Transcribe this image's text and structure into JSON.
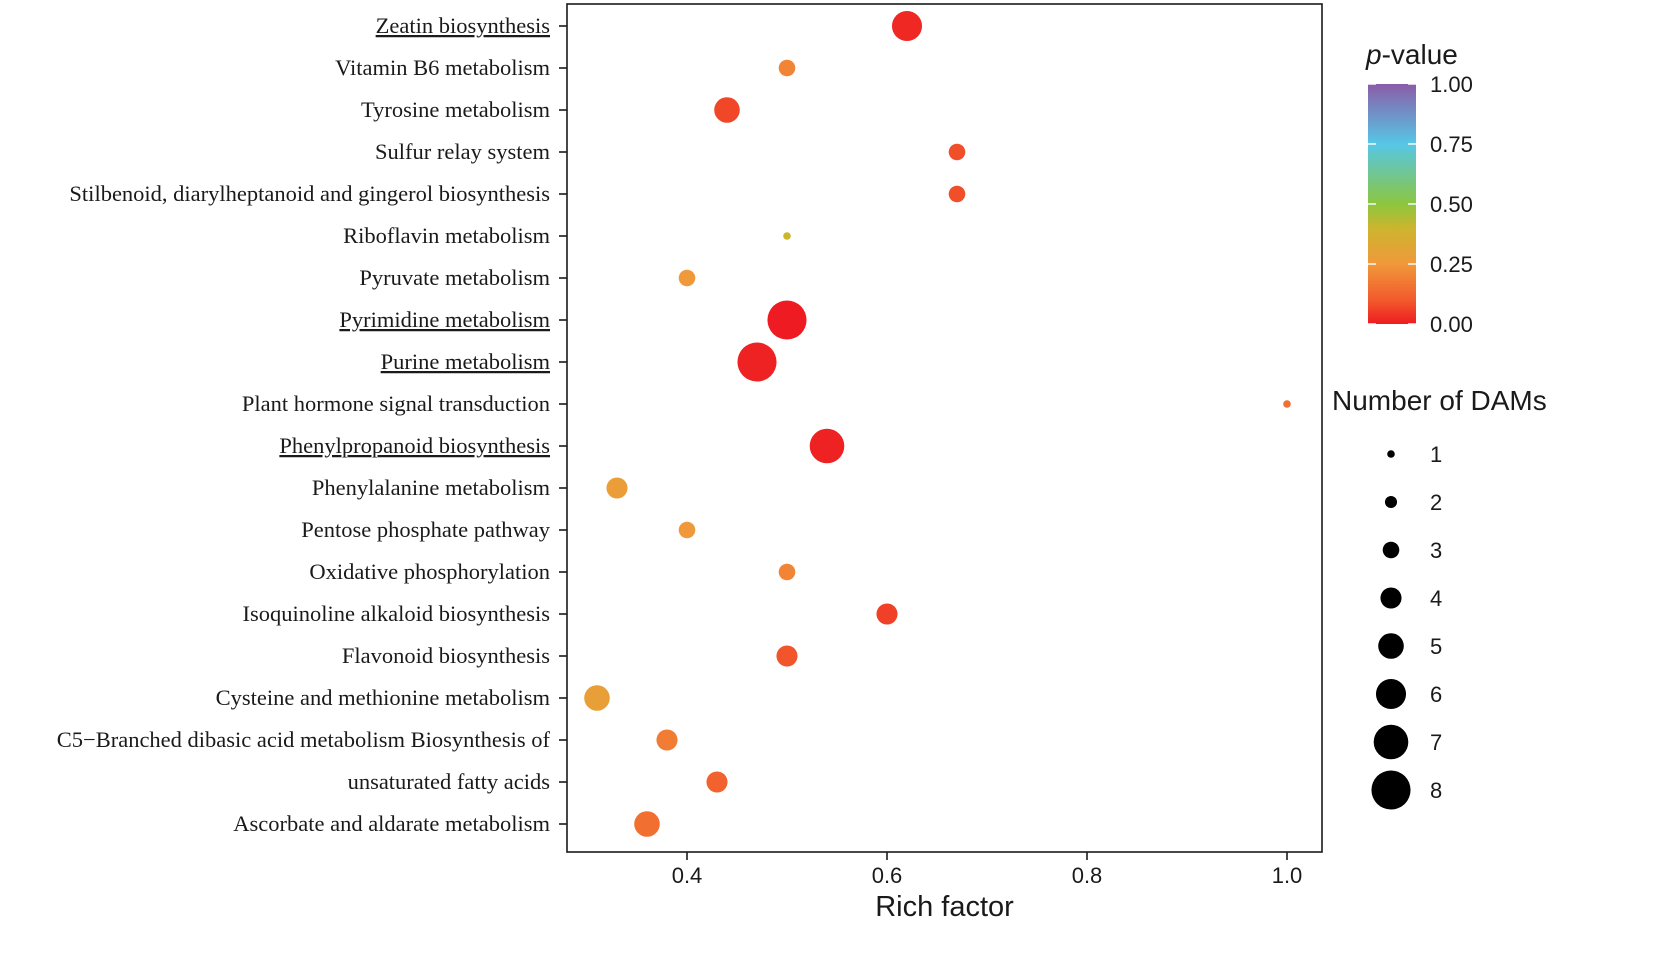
{
  "chart_data": {
    "type": "scatter",
    "title": "",
    "xlabel": "Rich factor",
    "ylabel": "",
    "xlim": [
      0.28,
      1.035
    ],
    "x_ticks": [
      0.4,
      0.6,
      0.8,
      1.0
    ],
    "x_tick_labels": [
      "0.4",
      "0.6",
      "0.8",
      "1.0"
    ],
    "grid": false,
    "points": [
      {
        "pathway": "Zeatin biosynthesis",
        "rich_factor": 0.62,
        "p_value": 0.02,
        "dams": 6,
        "underline": true
      },
      {
        "pathway": "Vitamin B6 metabolism",
        "rich_factor": 0.5,
        "p_value": 0.2,
        "dams": 3,
        "underline": false
      },
      {
        "pathway": "Tyrosine metabolism",
        "rich_factor": 0.44,
        "p_value": 0.07,
        "dams": 5,
        "underline": false
      },
      {
        "pathway": "Sulfur relay system",
        "rich_factor": 0.67,
        "p_value": 0.08,
        "dams": 3,
        "underline": false
      },
      {
        "pathway": "Stilbenoid, diarylheptanoid and gingerol biosynthesis",
        "rich_factor": 0.67,
        "p_value": 0.08,
        "dams": 3,
        "underline": false
      },
      {
        "pathway": "Riboflavin metabolism",
        "rich_factor": 0.5,
        "p_value": 0.4,
        "dams": 1,
        "underline": false
      },
      {
        "pathway": "Pyruvate metabolism",
        "rich_factor": 0.4,
        "p_value": 0.25,
        "dams": 3,
        "underline": false
      },
      {
        "pathway": "Pyrimidine metabolism",
        "rich_factor": 0.5,
        "p_value": 0.0,
        "dams": 8,
        "underline": true
      },
      {
        "pathway": "Purine metabolism",
        "rich_factor": 0.47,
        "p_value": 0.01,
        "dams": 8,
        "underline": true
      },
      {
        "pathway": "Plant hormone signal transduction",
        "rich_factor": 1.0,
        "p_value": 0.15,
        "dams": 1,
        "underline": false
      },
      {
        "pathway": "Phenylpropanoid biosynthesis",
        "rich_factor": 0.54,
        "p_value": 0.01,
        "dams": 7,
        "underline": true
      },
      {
        "pathway": "Phenylalanine metabolism",
        "rich_factor": 0.33,
        "p_value": 0.27,
        "dams": 4,
        "underline": false
      },
      {
        "pathway": "Pentose phosphate pathway",
        "rich_factor": 0.4,
        "p_value": 0.25,
        "dams": 3,
        "underline": false
      },
      {
        "pathway": "Oxidative phosphorylation",
        "rich_factor": 0.5,
        "p_value": 0.2,
        "dams": 3,
        "underline": false
      },
      {
        "pathway": "Isoquinoline alkaloid biosynthesis",
        "rich_factor": 0.6,
        "p_value": 0.06,
        "dams": 4,
        "underline": false
      },
      {
        "pathway": "Flavonoid biosynthesis",
        "rich_factor": 0.5,
        "p_value": 0.09,
        "dams": 4,
        "underline": false
      },
      {
        "pathway": "Cysteine and methionine metabolism",
        "rich_factor": 0.31,
        "p_value": 0.28,
        "dams": 5,
        "underline": false
      },
      {
        "pathway": "C5−Branched dibasic acid metabolism Biosynthesis of",
        "rich_factor": 0.38,
        "p_value": 0.18,
        "dams": 4,
        "underline": false
      },
      {
        "pathway": "unsaturated fatty acids",
        "rich_factor": 0.43,
        "p_value": 0.12,
        "dams": 4,
        "underline": false
      },
      {
        "pathway": "Ascorbate and aldarate metabolism",
        "rich_factor": 0.36,
        "p_value": 0.15,
        "dams": 5,
        "underline": false
      }
    ],
    "color_legend": {
      "title_italic": "p",
      "title_rest": "-value",
      "range": [
        0.0,
        1.0
      ],
      "ticks": [
        1.0,
        0.75,
        0.5,
        0.25,
        0.0
      ],
      "tick_labels": [
        "1.00",
        "0.75",
        "0.50",
        "0.25",
        "0.00"
      ],
      "color_stops": [
        {
          "value": 0.0,
          "color": "#ee1c22"
        },
        {
          "value": 0.1,
          "color": "#f25a2c"
        },
        {
          "value": 0.25,
          "color": "#f0993a"
        },
        {
          "value": 0.4,
          "color": "#cdb52e"
        },
        {
          "value": 0.5,
          "color": "#8cc63f"
        },
        {
          "value": 0.75,
          "color": "#56c7e6"
        },
        {
          "value": 1.0,
          "color": "#8a5ca8"
        }
      ]
    },
    "size_legend": {
      "title": "Number of DAMs",
      "values": [
        1,
        2,
        3,
        4,
        5,
        6,
        7,
        8
      ],
      "labels": [
        "1",
        "2",
        "3",
        "4",
        "5",
        "6",
        "7",
        "8"
      ],
      "color": "#000000"
    }
  }
}
